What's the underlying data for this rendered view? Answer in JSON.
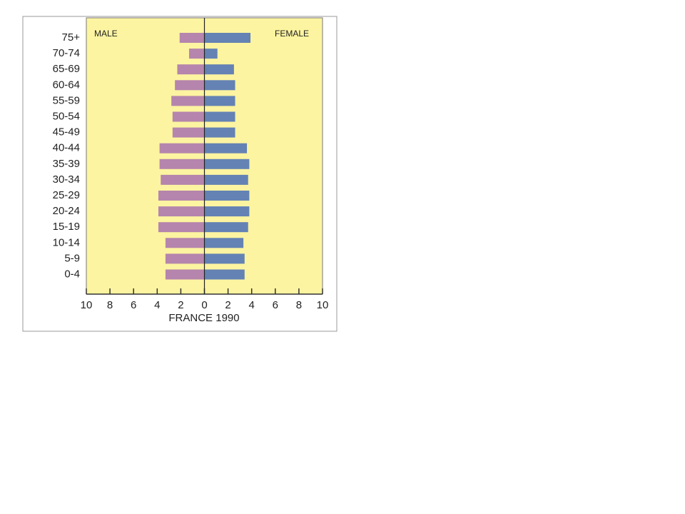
{
  "chart_data": {
    "type": "pyramid",
    "title": "FRANCE 1990",
    "categories": [
      "75+",
      "70-74",
      "65-69",
      "60-64",
      "55-59",
      "50-54",
      "45-49",
      "40-44",
      "35-39",
      "30-34",
      "25-29",
      "20-24",
      "15-19",
      "10-14",
      "5-9",
      "0-4"
    ],
    "series": [
      {
        "name": "MALE",
        "color": "#b585ad",
        "values": [
          -2.1,
          -1.3,
          -2.3,
          -2.5,
          -2.8,
          -2.7,
          -2.7,
          -3.8,
          -3.8,
          -3.7,
          -3.9,
          -3.9,
          -3.9,
          -3.3,
          -3.3,
          -3.3
        ]
      },
      {
        "name": "FEMALE",
        "color": "#6482b4",
        "values": [
          3.9,
          1.1,
          2.5,
          2.6,
          2.6,
          2.6,
          2.6,
          3.6,
          3.8,
          3.7,
          3.8,
          3.8,
          3.7,
          3.3,
          3.4,
          3.4
        ]
      }
    ],
    "xlim": [
      -10,
      10
    ],
    "xticks": [
      {
        "value": -10,
        "label": "10"
      },
      {
        "value": -8,
        "label": "8"
      },
      {
        "value": -6,
        "label": "6"
      },
      {
        "value": -4,
        "label": "4"
      },
      {
        "value": -2,
        "label": "2"
      },
      0,
      2,
      4,
      6,
      8,
      10
    ],
    "background": "#fcf4a0"
  }
}
